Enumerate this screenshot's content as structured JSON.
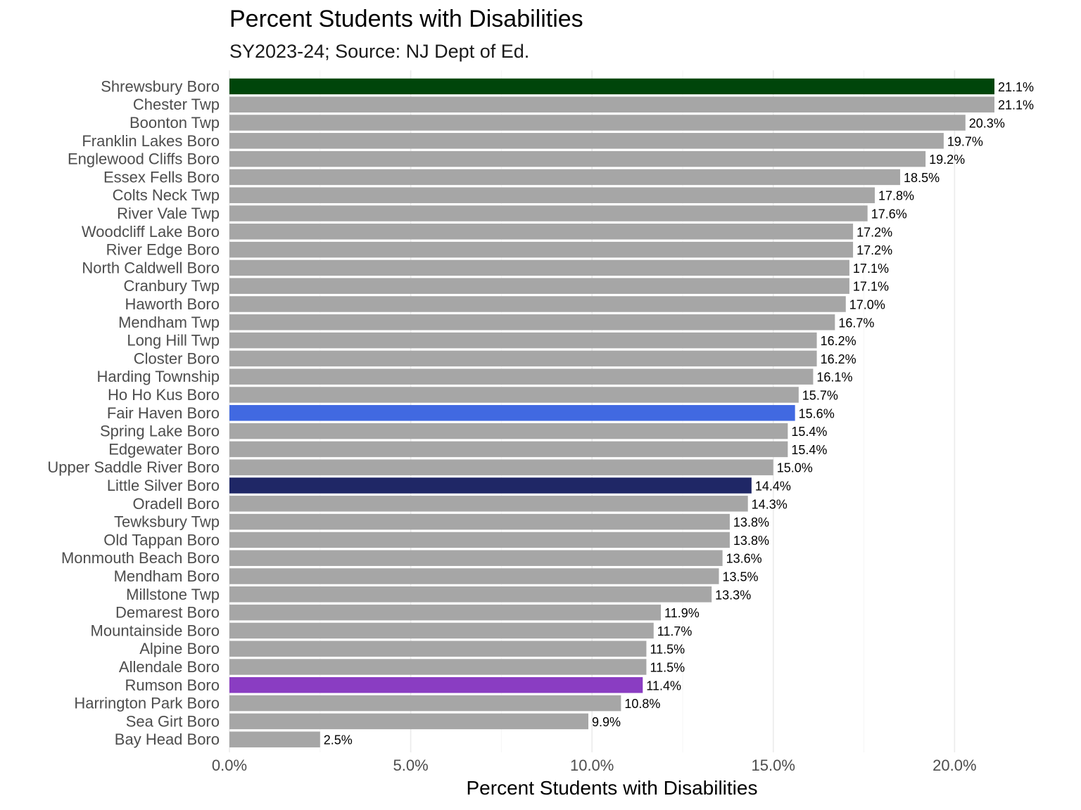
{
  "chart_data": {
    "type": "bar",
    "orientation": "horizontal",
    "title": "Percent Students with Disabilities",
    "subtitle": "SY2023-24; Source: NJ Dept of Ed.",
    "xlabel": "Percent Students with Disabilities",
    "ylabel": "",
    "xlim": [
      0,
      0.211
    ],
    "x_ticks": [
      0,
      0.05,
      0.1,
      0.15,
      0.2
    ],
    "x_tick_labels": [
      "0.0%",
      "5.0%",
      "10.0%",
      "15.0%",
      "20.0%"
    ],
    "grid": "vertical major gridlines",
    "default_color": "#a6a6a6",
    "categories": [
      "Shrewsbury Boro",
      "Chester Twp",
      "Boonton Twp",
      "Franklin Lakes Boro",
      "Englewood Cliffs Boro",
      "Essex Fells Boro",
      "Colts Neck Twp",
      "River Vale Twp",
      "Woodcliff Lake Boro",
      "River Edge Boro",
      "North Caldwell Boro",
      "Cranbury Twp",
      "Haworth Boro",
      "Mendham Twp",
      "Long Hill Twp",
      "Closter Boro",
      "Harding Township",
      "Ho Ho Kus Boro",
      "Fair Haven Boro",
      "Spring Lake Boro",
      "Edgewater Boro",
      "Upper Saddle River Boro",
      "Little Silver Boro",
      "Oradell Boro",
      "Tewksbury Twp",
      "Old Tappan Boro",
      "Monmouth Beach Boro",
      "Mendham Boro",
      "Millstone Twp",
      "Demarest Boro",
      "Mountainside Boro",
      "Alpine Boro",
      "Allendale Boro",
      "Rumson Boro",
      "Harrington Park Boro",
      "Sea Girt Boro",
      "Bay Head Boro"
    ],
    "values": [
      0.211,
      0.211,
      0.203,
      0.197,
      0.192,
      0.185,
      0.178,
      0.176,
      0.172,
      0.172,
      0.171,
      0.171,
      0.17,
      0.167,
      0.162,
      0.162,
      0.161,
      0.157,
      0.156,
      0.154,
      0.154,
      0.15,
      0.144,
      0.143,
      0.138,
      0.138,
      0.136,
      0.135,
      0.133,
      0.119,
      0.117,
      0.115,
      0.115,
      0.114,
      0.108,
      0.099,
      0.025
    ],
    "value_labels": [
      "21.1%",
      "21.1%",
      "20.3%",
      "19.7%",
      "19.2%",
      "18.5%",
      "17.8%",
      "17.6%",
      "17.2%",
      "17.2%",
      "17.1%",
      "17.1%",
      "17.0%",
      "16.7%",
      "16.2%",
      "16.2%",
      "16.1%",
      "15.7%",
      "15.6%",
      "15.4%",
      "15.4%",
      "15.0%",
      "14.4%",
      "14.3%",
      "13.8%",
      "13.8%",
      "13.6%",
      "13.5%",
      "13.3%",
      "11.9%",
      "11.7%",
      "11.5%",
      "11.5%",
      "11.4%",
      "10.8%",
      "9.9%",
      "2.5%"
    ],
    "highlights": {
      "Shrewsbury Boro": "#00450a",
      "Fair Haven Boro": "#4169e1",
      "Little Silver Boro": "#1f2766",
      "Rumson Boro": "#8a3dc2"
    }
  }
}
